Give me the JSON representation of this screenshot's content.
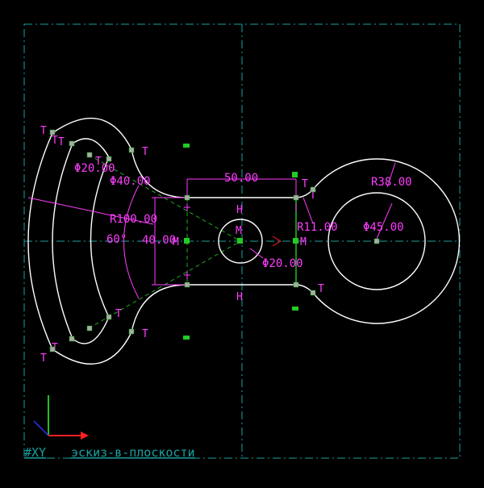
{
  "sketch": {
    "plane_label": "#XY",
    "sketch_name": "эскиз-в-плоскости"
  },
  "dimensions": {
    "d_hole_small": "Φ20.00",
    "d_hole_large": "Φ40.00",
    "radius_outer": "R100.00",
    "angle": "60°",
    "height": "40.00",
    "width": "50.00",
    "radius_fillet": "R11.00",
    "radius_right": "R38.00",
    "d_right": "Φ45.00",
    "d_center": "Φ20.00"
  },
  "constraints": {
    "tangent": "T",
    "horizontal": "H",
    "midpoint": "M"
  },
  "colors": {
    "geometry": "#ffffff",
    "dimension": "#ff3cff",
    "construction": "#1aa0a0",
    "point": "#22cc22",
    "axis_x": "#ff2020",
    "axis_y": "#20c020",
    "axis_z": "#3030ff"
  }
}
